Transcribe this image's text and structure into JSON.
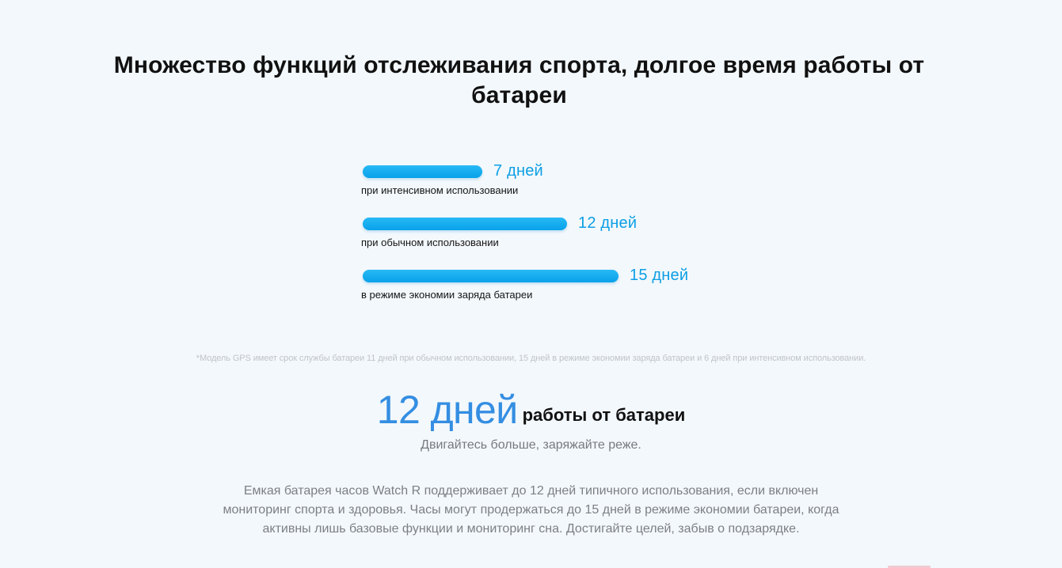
{
  "page": {
    "title": "Множество функций отслеживания спорта, долгое время работы от батареи"
  },
  "battery": {
    "max_days": 15,
    "items": [
      {
        "days": 7,
        "value": "7",
        "unit": "дней",
        "caption": "при интенсивном использовании"
      },
      {
        "days": 12,
        "value": "12",
        "unit": "дней",
        "caption": "при обычном использовании"
      },
      {
        "days": 15,
        "value": "15",
        "unit": "дней",
        "caption": "в режиме экономии заряда батареи"
      }
    ]
  },
  "footnote": "*Модель GPS имеет срок службы батареи 11 дней при обычном использовании, 15 дней в режиме экономии заряда батареи и 6 дней при интенсивном использовании.",
  "headline": {
    "number": "12 дней",
    "text": "работы от батареи"
  },
  "subtitle": "Двигайтесь больше, заряжайте реже.",
  "description": "Емкая батарея часов Watch R поддерживает до 12 дней типичного использования, если включен мониторинг спорта и здоровья. Часы могут продержаться до 15 дней в режиме экономии батареи, когда активны лишь базовые функции и мониторинг сна. Достигайте целей, забыв о подзарядке.",
  "colors": {
    "background": "#f3f8fc",
    "bar_start": "#27b9f5",
    "bar_end": "#08a1ea",
    "bar_value": "#0d9fe4",
    "headline_number": "#348ee2",
    "footnote": "#c0c4c8",
    "body_text": "#7c8085"
  }
}
